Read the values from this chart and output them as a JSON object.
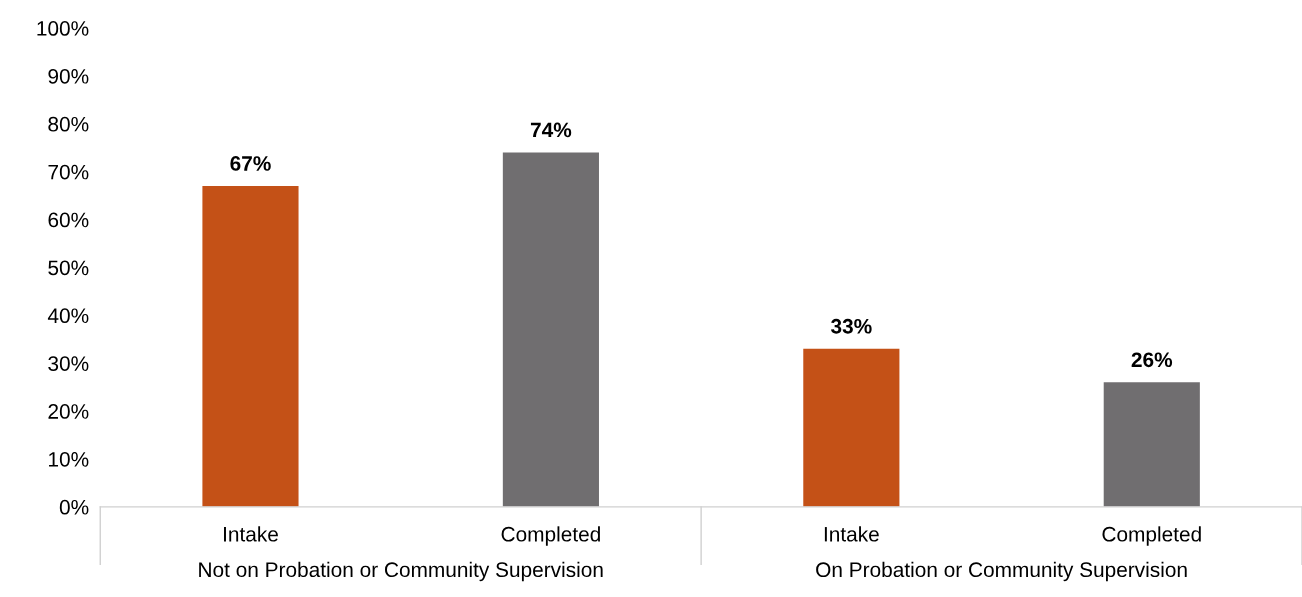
{
  "chart_data": {
    "type": "bar",
    "categories": [
      "Intake",
      "Completed",
      "Intake",
      "Completed"
    ],
    "values": [
      67,
      74,
      33,
      26
    ],
    "colors": [
      "#c45117",
      "#706e70",
      "#c45117",
      "#706e70"
    ],
    "value_labels": [
      "67%",
      "74%",
      "33%",
      "26%"
    ],
    "ylim": [
      0,
      100
    ],
    "yticks": [
      {
        "value": 0,
        "label": "0%"
      },
      {
        "value": 10,
        "label": "10%"
      },
      {
        "value": 20,
        "label": "20%"
      },
      {
        "value": 30,
        "label": "30%"
      },
      {
        "value": 40,
        "label": "40%"
      },
      {
        "value": 50,
        "label": "50%"
      },
      {
        "value": 60,
        "label": "60%"
      },
      {
        "value": 70,
        "label": "70%"
      },
      {
        "value": 80,
        "label": "80%"
      },
      {
        "value": 90,
        "label": "90%"
      },
      {
        "value": 100,
        "label": "100%"
      }
    ],
    "annotations": [
      "Not on Probation or Community Supervision",
      "On Probation or Community Supervision"
    ],
    "grid": false,
    "legend": false
  }
}
